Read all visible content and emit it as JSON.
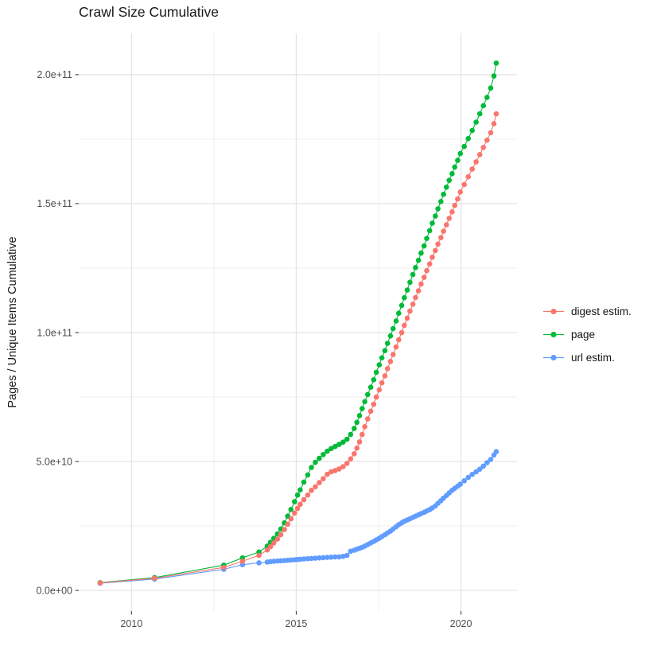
{
  "chart_data": {
    "type": "line",
    "title": "Crawl Size Cumulative",
    "xlabel": "",
    "ylabel": "Pages / Unique Items Cumulative",
    "legend_position": "right",
    "grid": true,
    "xlim": [
      2008.4,
      2021.7
    ],
    "ylim": [
      -8000000000.0,
      216000000000.0
    ],
    "x_ticks": [
      {
        "value": 2010,
        "label": "2010"
      },
      {
        "value": 2015,
        "label": "2015"
      },
      {
        "value": 2020,
        "label": "2020"
      }
    ],
    "y_ticks": [
      {
        "value": 0,
        "label": "0.0e+00"
      },
      {
        "value": 50000000000.0,
        "label": "5.0e+10"
      },
      {
        "value": 100000000000.0,
        "label": "1.0e+11"
      },
      {
        "value": 150000000000.0,
        "label": "1.5e+11"
      },
      {
        "value": 200000000000.0,
        "label": "2.0e+11"
      }
    ],
    "x_minor_ticks": [
      2012.5,
      2017.5
    ],
    "y_minor_ticks": [
      25000000000.0,
      75000000000.0,
      125000000000.0,
      175000000000.0
    ],
    "x": [
      2009.05,
      2010.7,
      2012.8,
      2013.37,
      2013.87,
      2014.12,
      2014.22,
      2014.32,
      2014.43,
      2014.53,
      2014.64,
      2014.74,
      2014.84,
      2014.95,
      2015.04,
      2015.12,
      2015.23,
      2015.35,
      2015.46,
      2015.58,
      2015.7,
      2015.82,
      2015.94,
      2016.06,
      2016.18,
      2016.3,
      2016.42,
      2016.54,
      2016.65,
      2016.76,
      2016.84,
      2016.92,
      2017.0,
      2017.08,
      2017.17,
      2017.26,
      2017.35,
      2017.43,
      2017.52,
      2017.6,
      2017.69,
      2017.77,
      2017.86,
      2017.94,
      2018.03,
      2018.11,
      2018.2,
      2018.28,
      2018.37,
      2018.45,
      2018.54,
      2018.62,
      2018.71,
      2018.79,
      2018.88,
      2018.96,
      2019.05,
      2019.13,
      2019.22,
      2019.3,
      2019.39,
      2019.47,
      2019.56,
      2019.64,
      2019.73,
      2019.81,
      2019.9,
      2019.98,
      2020.1,
      2020.22,
      2020.34,
      2020.46,
      2020.57,
      2020.68,
      2020.79,
      2020.9,
      2021.0,
      2021.07
    ],
    "series": [
      {
        "name": "digest estim.",
        "color": "#F8766D",
        "values": [
          2900000000.0,
          4700000000.0,
          8900000000.0,
          11300000000.0,
          13600000000.0,
          15700000000.0,
          17000000000.0,
          18400000000.0,
          19900000000.0,
          21600000000.0,
          23600000000.0,
          25700000000.0,
          27800000000.0,
          30000000000.0,
          31800000000.0,
          33400000000.0,
          35200000000.0,
          37000000000.0,
          38800000000.0,
          40200000000.0,
          41800000000.0,
          43300000000.0,
          45000000000.0,
          46000000000.0,
          46500000000.0,
          47100000000.0,
          48000000000.0,
          49300000000.0,
          51000000000.0,
          53000000000.0,
          55200000000.0,
          57600000000.0,
          60500000000.0,
          63500000000.0,
          66500000000.0,
          69500000000.0,
          72200000000.0,
          75000000000.0,
          77800000000.0,
          80500000000.0,
          83200000000.0,
          86000000000.0,
          88800000000.0,
          91500000000.0,
          94400000000.0,
          97200000000.0,
          100000000000.0,
          102800000000.0,
          105600000000.0,
          108300000000.0,
          111000000000.0,
          113600000000.0,
          116200000000.0,
          118800000000.0,
          121400000000.0,
          124000000000.0,
          126600000000.0,
          129200000000.0,
          131800000000.0,
          134300000000.0,
          136800000000.0,
          139300000000.0,
          141800000000.0,
          144300000000.0,
          146800000000.0,
          149300000000.0,
          151800000000.0,
          154500000000.0,
          157400000000.0,
          160400000000.0,
          163400000000.0,
          166200000000.0,
          169000000000.0,
          171800000000.0,
          174600000000.0,
          177500000000.0,
          181000000000.0,
          184800000000.0
        ]
      },
      {
        "name": "page",
        "color": "#00BA38",
        "values": [
          3000000000.0,
          5000000000.0,
          9800000000.0,
          12600000000.0,
          14900000000.0,
          17200000000.0,
          18700000000.0,
          20200000000.0,
          21900000000.0,
          23800000000.0,
          26200000000.0,
          28800000000.0,
          31400000000.0,
          34400000000.0,
          37000000000.0,
          39000000000.0,
          42000000000.0,
          44800000000.0,
          47700000000.0,
          49700000000.0,
          51200000000.0,
          52700000000.0,
          54000000000.0,
          55000000000.0,
          55800000000.0,
          56600000000.0,
          57500000000.0,
          58600000000.0,
          60500000000.0,
          62800000000.0,
          65200000000.0,
          67800000000.0,
          70500000000.0,
          73200000000.0,
          76000000000.0,
          78800000000.0,
          81700000000.0,
          84600000000.0,
          87500000000.0,
          90200000000.0,
          93000000000.0,
          95800000000.0,
          98700000000.0,
          101500000000.0,
          104500000000.0,
          107500000000.0,
          110500000000.0,
          113500000000.0,
          116500000000.0,
          119500000000.0,
          122500000000.0,
          125200000000.0,
          128000000000.0,
          130800000000.0,
          133600000000.0,
          136500000000.0,
          139500000000.0,
          142400000000.0,
          145200000000.0,
          148000000000.0,
          150800000000.0,
          153600000000.0,
          156400000000.0,
          159000000000.0,
          161600000000.0,
          164200000000.0,
          166800000000.0,
          169400000000.0,
          172200000000.0,
          175200000000.0,
          178400000000.0,
          181600000000.0,
          184800000000.0,
          188000000000.0,
          191200000000.0,
          194800000000.0,
          199500000000.0,
          204500000000.0
        ]
      },
      {
        "name": "url estim.",
        "color": "#619CFF",
        "values": [
          2800000000.0,
          4400000000.0,
          8200000000.0,
          10000000000.0,
          10700000000.0,
          11000000000.0,
          11200000000.0,
          11300000000.0,
          11400000000.0,
          11500000000.0,
          11600000000.0,
          11700000000.0,
          11800000000.0,
          11900000000.0,
          12000000000.0,
          12100000000.0,
          12200000000.0,
          12300000000.0,
          12400000000.0,
          12500000000.0,
          12600000000.0,
          12700000000.0,
          12800000000.0,
          12900000000.0,
          13000000000.0,
          13000000000.0,
          13200000000.0,
          13600000000.0,
          15200000000.0,
          15600000000.0,
          16000000000.0,
          16300000000.0,
          16700000000.0,
          17200000000.0,
          17800000000.0,
          18400000000.0,
          19000000000.0,
          19600000000.0,
          20200000000.0,
          20900000000.0,
          21600000000.0,
          22300000000.0,
          23000000000.0,
          23800000000.0,
          24700000000.0,
          25500000000.0,
          26200000000.0,
          26800000000.0,
          27300000000.0,
          27800000000.0,
          28300000000.0,
          28800000000.0,
          29300000000.0,
          29800000000.0,
          30300000000.0,
          30800000000.0,
          31300000000.0,
          32000000000.0,
          32800000000.0,
          33800000000.0,
          34800000000.0,
          35800000000.0,
          36800000000.0,
          37800000000.0,
          38800000000.0,
          39600000000.0,
          40400000000.0,
          41200000000.0,
          42500000000.0,
          43800000000.0,
          45000000000.0,
          46000000000.0,
          47000000000.0,
          48200000000.0,
          49500000000.0,
          50800000000.0,
          52500000000.0,
          53800000000.0
        ]
      }
    ]
  }
}
